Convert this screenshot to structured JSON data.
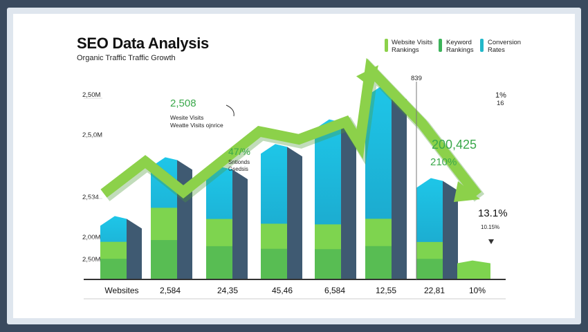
{
  "chart_data": {
    "type": "bar",
    "title": "SEO Data Analysis",
    "subtitle": "Organic Traffic Traffic Growth",
    "legend": [
      {
        "label_line1": "Website Visits",
        "label_line2": "Rankings",
        "color": "#8cd14a"
      },
      {
        "label_line1": "Keyword",
        "label_line2": "Rankings",
        "color": "#3db35a"
      },
      {
        "label_line1": "Conversion",
        "label_line2": "Rates",
        "color": "#22b8c9"
      }
    ],
    "legend_position": "top-right",
    "y_ticks_left": [
      "2,50M",
      "2,5,0M",
      "2,534",
      "2,00M",
      "2,50M"
    ],
    "y_ticks_right": [
      "1%",
      "16"
    ],
    "top_marker": "839",
    "categories": [
      "Websites",
      "2,584",
      "24,35",
      "45,46",
      "6,584",
      "12,55",
      "22,81",
      "10%"
    ],
    "bars": [
      {
        "total": 0.32,
        "green": 0.62
      },
      {
        "total": 0.63,
        "green": 0.6
      },
      {
        "total": 0.58,
        "green": 0.55
      },
      {
        "total": 0.7,
        "green": 0.42
      },
      {
        "total": 0.83,
        "green": 0.35
      },
      {
        "total": 1.0,
        "green": 0.32
      },
      {
        "total": 0.52,
        "green": 0.38
      },
      {
        "total": 0.1,
        "green": 1.0
      }
    ],
    "trend_line": [
      0.54,
      0.74,
      0.55,
      0.93,
      0.88,
      0.99,
      0.85,
      1.32,
      0.98,
      0.53
    ],
    "annotations": {
      "a1_value": "2,508",
      "a1_line1": "Wesite Visits",
      "a1_line2": "Weatte Visits ojnrice",
      "a2_value": "47/%",
      "a2_line1": "Sntionds",
      "a2_line2": "Gsedsis",
      "a3_value": "200,425",
      "a3_sub": "210%",
      "a4_value": "13.1%",
      "a4_sub": "10.15%"
    },
    "colors": {
      "bar_top": "#1ec6e8",
      "bar_side": "#3f5a72",
      "bar_green": "#7ed44f",
      "bar_green_dark": "#3fae57",
      "trend": "#8cd14a"
    },
    "grid": true
  }
}
